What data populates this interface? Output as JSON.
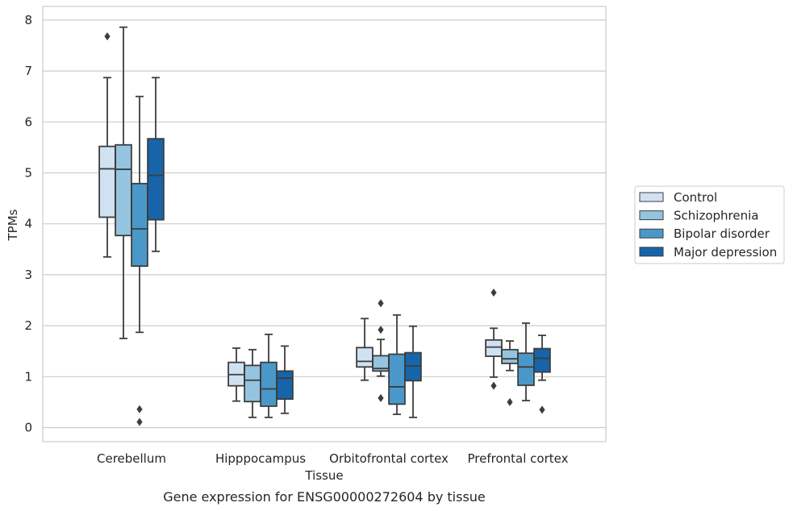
{
  "chart_data": {
    "type": "boxplot",
    "caption": "Gene expression for ENSG00000272604 by tissue",
    "xlabel": "Tissue",
    "ylabel": "TPMs",
    "ylim": [
      -0.25,
      8.25
    ],
    "yticks": [
      0,
      1,
      2,
      3,
      4,
      5,
      6,
      7,
      8
    ],
    "grid": true,
    "legend_position": "right",
    "categories": [
      "Cerebellum",
      "Hipppocampus",
      "Orbitofrontal cortex",
      "Prefrontal cortex"
    ],
    "series": [
      {
        "name": "Control",
        "color": "#d0e1f2",
        "boxes": [
          {
            "whislo": 3.35,
            "q1": 4.13,
            "med": 5.08,
            "q3": 5.52,
            "whishi": 6.87,
            "fliers": [
              7.68
            ]
          },
          {
            "whislo": 0.52,
            "q1": 0.82,
            "med": 1.04,
            "q3": 1.28,
            "whishi": 1.56,
            "fliers": []
          },
          {
            "whislo": 0.93,
            "q1": 1.19,
            "med": 1.3,
            "q3": 1.57,
            "whishi": 2.14,
            "fliers": []
          },
          {
            "whislo": 0.99,
            "q1": 1.4,
            "med": 1.58,
            "q3": 1.72,
            "whishi": 1.95,
            "fliers": [
              2.65,
              0.82
            ]
          }
        ]
      },
      {
        "name": "Schizophrenia",
        "color": "#94c4df",
        "boxes": [
          {
            "whislo": 1.75,
            "q1": 3.77,
            "med": 5.07,
            "q3": 5.55,
            "whishi": 7.86,
            "fliers": []
          },
          {
            "whislo": 0.2,
            "q1": 0.51,
            "med": 0.93,
            "q3": 1.22,
            "whishi": 1.53,
            "fliers": []
          },
          {
            "whislo": 1.01,
            "q1": 1.11,
            "med": 1.16,
            "q3": 1.41,
            "whishi": 1.73,
            "fliers": [
              2.44,
              1.92,
              0.58
            ]
          },
          {
            "whislo": 1.12,
            "q1": 1.26,
            "med": 1.35,
            "q3": 1.53,
            "whishi": 1.7,
            "fliers": [
              0.5
            ]
          }
        ]
      },
      {
        "name": "Bipolar disorder",
        "color": "#4a98c9",
        "boxes": [
          {
            "whislo": 1.87,
            "q1": 3.17,
            "med": 3.9,
            "q3": 4.79,
            "whishi": 6.5,
            "fliers": [
              0.36,
              0.11
            ]
          },
          {
            "whislo": 0.2,
            "q1": 0.42,
            "med": 0.76,
            "q3": 1.28,
            "whishi": 1.83,
            "fliers": []
          },
          {
            "whislo": 0.26,
            "q1": 0.46,
            "med": 0.8,
            "q3": 1.44,
            "whishi": 2.21,
            "fliers": []
          },
          {
            "whislo": 0.53,
            "q1": 0.83,
            "med": 1.19,
            "q3": 1.46,
            "whishi": 2.05,
            "fliers": []
          }
        ]
      },
      {
        "name": "Major depression",
        "color": "#1764ab",
        "boxes": [
          {
            "whislo": 3.46,
            "q1": 4.08,
            "med": 4.95,
            "q3": 5.67,
            "whishi": 6.87,
            "fliers": []
          },
          {
            "whislo": 0.28,
            "q1": 0.56,
            "med": 0.97,
            "q3": 1.11,
            "whishi": 1.6,
            "fliers": []
          },
          {
            "whislo": 0.2,
            "q1": 0.92,
            "med": 1.21,
            "q3": 1.47,
            "whishi": 1.99,
            "fliers": []
          },
          {
            "whislo": 0.93,
            "q1": 1.09,
            "med": 1.36,
            "q3": 1.55,
            "whishi": 1.81,
            "fliers": [
              0.35
            ]
          }
        ]
      }
    ]
  }
}
